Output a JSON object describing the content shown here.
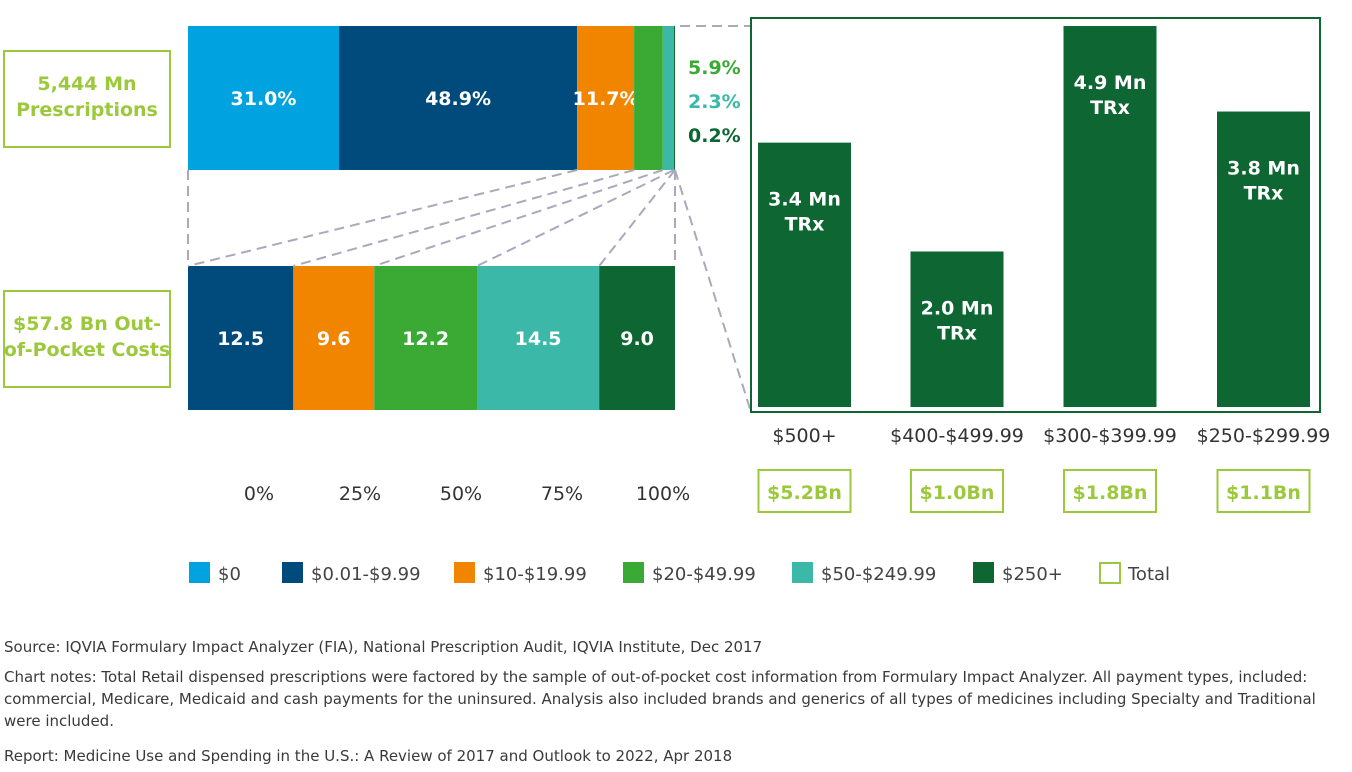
{
  "chart_data": {
    "type": "bar",
    "colors": {
      "$0": "#00a3e0",
      "$0.01-$9.99": "#004b7c",
      "$10-$19.99": "#f28500",
      "$20-$49.99": "#3aaa35",
      "$50-$249.99": "#3bb8a8",
      "$250+": "#0e6632",
      "Total": "#9cc83c"
    },
    "stacked": {
      "type": "stacked_bar_horizontal",
      "rows": [
        {
          "label": "5,444 Mn Prescriptions",
          "values": [
            31.0,
            48.9,
            11.7,
            5.9,
            2.3,
            0.2
          ],
          "labels": [
            "31.0%",
            "48.9%",
            "11.7%",
            "5.9%",
            "2.3%",
            "0.2%"
          ],
          "outside_labels": [
            "5.9%",
            "2.3%",
            "0.2%"
          ]
        },
        {
          "label": "$57.8 Bn Out-of-Pocket Costs",
          "values": [
            0,
            12.5,
            9.6,
            12.2,
            14.5,
            9.0
          ],
          "labels": [
            "",
            "12.5",
            "9.6",
            "12.2",
            "14.5",
            "9.0"
          ]
        }
      ],
      "xticks": [
        "0%",
        "25%",
        "50%",
        "75%",
        "100%"
      ]
    },
    "detail": {
      "type": "bar",
      "categories": [
        "$500+",
        "$400-$499.99",
        "$300-$399.99",
        "$250-$299.99"
      ],
      "values": [
        3.4,
        2.0,
        4.9,
        3.8
      ],
      "bar_labels": [
        "3.4 Mn TRx",
        "2.0 Mn TRx",
        "4.9 Mn TRx",
        "3.8 Mn TRx"
      ],
      "totals": [
        "$5.2Bn",
        "$1.0Bn",
        "$1.8Bn",
        "$1.1Bn"
      ]
    },
    "legend": [
      "$0",
      "$0.01-$9.99",
      "$10-$19.99",
      "$20-$49.99",
      "$50-$249.99",
      "$250+",
      "Total"
    ]
  },
  "notes": {
    "source": "Source: IQVIA Formulary Impact Analyzer (FIA), National Prescription Audit, IQVIA Institute, Dec 2017",
    "chart_notes": "Chart notes: Total Retail dispensed prescriptions were factored by the sample of out-of-pocket cost information from Formulary Impact Analyzer. All payment types, included: commercial, Medicare, Medicaid and cash payments for the uninsured. Analysis also included brands and generics of all types of medicines including Specialty and Traditional were included.",
    "report": "Report: Medicine Use and Spending in the U.S.: A Review of 2017 and Outlook to 2022, Apr 2018"
  }
}
